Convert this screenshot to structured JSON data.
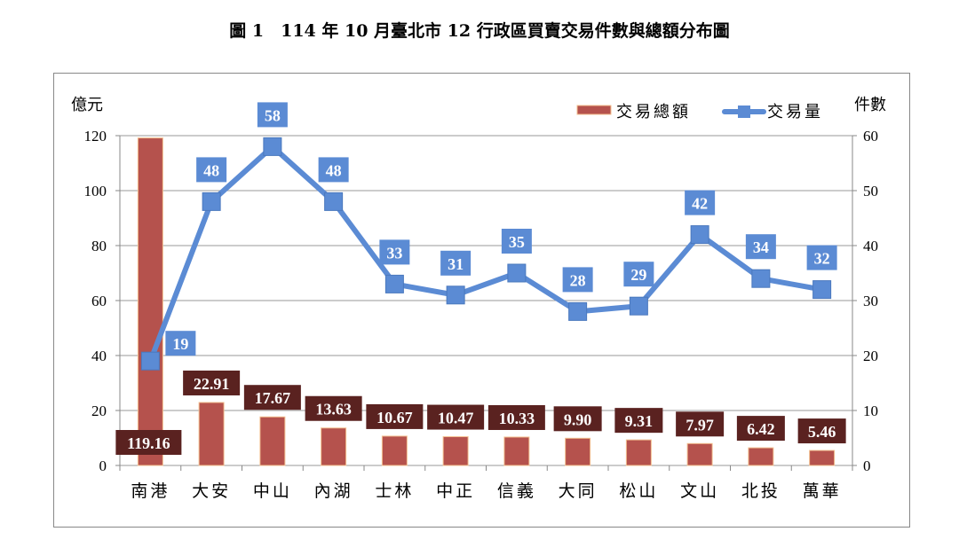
{
  "chart_data": {
    "type": "bar+line",
    "title": "圖 1　114 年 10 月臺北市 12 行政區買賣交易件數與總額分布圖",
    "categories": [
      "南港",
      "大安",
      "中山",
      "內湖",
      "士林",
      "中正",
      "信義",
      "大同",
      "松山",
      "文山",
      "北投",
      "萬華"
    ],
    "series": [
      {
        "name": "交易總額",
        "type": "bar",
        "axis": "left",
        "color": "#b5524d",
        "values": [
          119.16,
          22.91,
          17.67,
          13.63,
          10.67,
          10.47,
          10.33,
          9.9,
          9.31,
          7.97,
          6.42,
          5.46
        ],
        "labels": [
          "119.16",
          "22.91",
          "17.67",
          "13.63",
          "10.67",
          "10.47",
          "10.33",
          "9.90",
          "9.31",
          "7.97",
          "6.42",
          "5.46"
        ]
      },
      {
        "name": "交易量",
        "type": "line",
        "axis": "right",
        "color": "#5b8bd4",
        "values": [
          19,
          48,
          58,
          48,
          33,
          31,
          35,
          28,
          29,
          42,
          34,
          32
        ],
        "labels": [
          "19",
          "48",
          "58",
          "48",
          "33",
          "31",
          "35",
          "28",
          "29",
          "42",
          "34",
          "32"
        ]
      }
    ],
    "ylabel_left": "億元",
    "ylabel_right": "件數",
    "ylim_left": [
      0,
      120
    ],
    "ylim_right": [
      0,
      60
    ],
    "yticks_left": [
      "0",
      "20",
      "40",
      "60",
      "80",
      "100",
      "120"
    ],
    "yticks_right": [
      "0",
      "10",
      "20",
      "30",
      "40",
      "50",
      "60"
    ],
    "grid": true,
    "legend_position": "top-right",
    "bar_label_bg": "#5a2220",
    "line_label_bg": "#5b8bd4"
  }
}
